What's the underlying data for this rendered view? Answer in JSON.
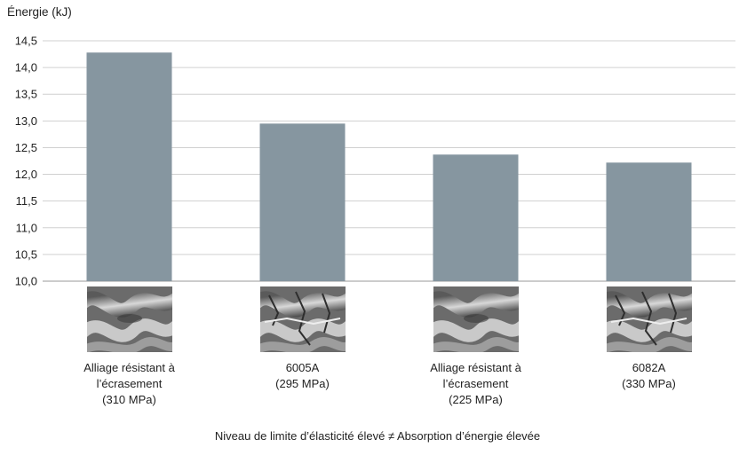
{
  "chart_data": {
    "type": "bar",
    "ylabel": "Énergie (kJ)",
    "xlabel": "Niveau de limite d’élasticité élevé ≠ Absorption d’énergie élevée",
    "ylim": [
      10.0,
      14.5
    ],
    "yticks": [
      "10,0",
      "10,5",
      "11,0",
      "11,5",
      "12,0",
      "12,5",
      "13,0",
      "13,5",
      "14,0",
      "14,5"
    ],
    "grid": true,
    "bar_color": "#8696a0",
    "categories": [
      {
        "lines": [
          "Alliage résistant à",
          "l’écrasement",
          "(310 MPa)"
        ],
        "value": 14.28
      },
      {
        "lines": [
          "6005A",
          "(295 MPa)"
        ],
        "value": 12.95
      },
      {
        "lines": [
          "Alliage résistant à",
          "l’écrasement",
          "(225 MPa)"
        ],
        "value": 12.37
      },
      {
        "lines": [
          "6082A",
          "(330 MPa)"
        ],
        "value": 12.22
      }
    ],
    "photos": [
      "crushed-profile-smooth-photo",
      "crushed-profile-cracked-photo",
      "crushed-profile-smooth-photo",
      "crushed-profile-cracked-photo"
    ]
  }
}
